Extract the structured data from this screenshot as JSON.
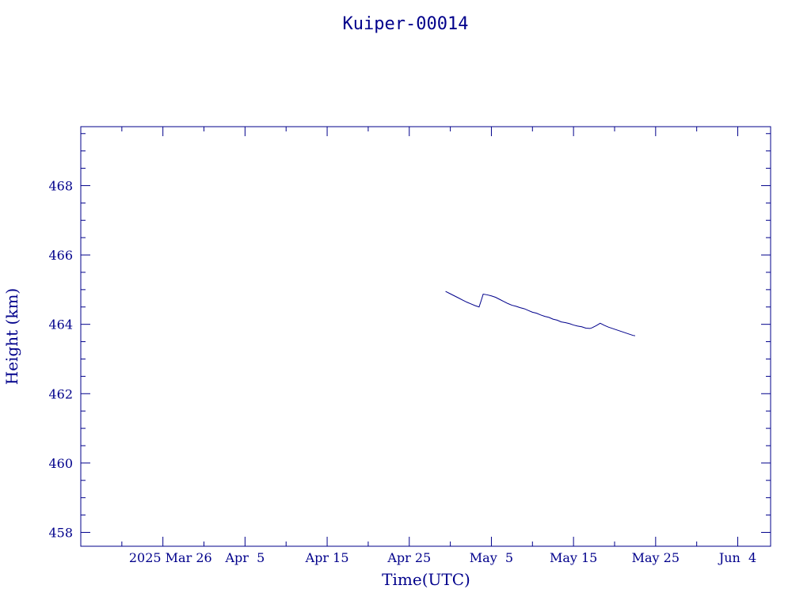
{
  "chart_data": {
    "type": "line",
    "title": "Kuiper-00014",
    "xlabel": "Time(UTC)",
    "ylabel": "Height (km)",
    "color": "#00008b",
    "x_date_range": [
      "2025-03-16",
      "2025-06-08"
    ],
    "ylim": [
      457.6,
      469.7
    ],
    "grid": false,
    "yticks": [
      {
        "value": 458,
        "label": "458"
      },
      {
        "value": 460,
        "label": "460"
      },
      {
        "value": 462,
        "label": "462"
      },
      {
        "value": 464,
        "label": "464"
      },
      {
        "value": 466,
        "label": "466"
      },
      {
        "value": 468,
        "label": "468"
      }
    ],
    "xticks": [
      {
        "date": "2025-03-26",
        "label": "2025 Mar 26"
      },
      {
        "date": "2025-04-05",
        "label": "Apr  5"
      },
      {
        "date": "2025-04-15",
        "label": "Apr 15"
      },
      {
        "date": "2025-04-25",
        "label": "Apr 25"
      },
      {
        "date": "2025-05-05",
        "label": "May  5"
      },
      {
        "date": "2025-05-15",
        "label": "May 15"
      },
      {
        "date": "2025-05-25",
        "label": "May 25"
      },
      {
        "date": "2025-06-04",
        "label": "Jun  4"
      }
    ],
    "series": [
      {
        "x": [
          "2025-04-29T10:00",
          "2025-04-30T00:00",
          "2025-04-30T12:00",
          "2025-05-01T00:00",
          "2025-05-01T12:00",
          "2025-05-02T00:00",
          "2025-05-02T12:00",
          "2025-05-03T00:00",
          "2025-05-03T06:00",
          "2025-05-03T12:00",
          "2025-05-03T18:00",
          "2025-05-04T00:00",
          "2025-05-04T12:00",
          "2025-05-05T00:00",
          "2025-05-05T12:00",
          "2025-05-06T00:00",
          "2025-05-06T12:00",
          "2025-05-07T00:00",
          "2025-05-07T12:00",
          "2025-05-08T00:00",
          "2025-05-08T12:00",
          "2025-05-09T00:00",
          "2025-05-09T12:00",
          "2025-05-10T00:00",
          "2025-05-10T12:00",
          "2025-05-11T00:00",
          "2025-05-11T12:00",
          "2025-05-12T00:00",
          "2025-05-12T12:00",
          "2025-05-13T00:00",
          "2025-05-13T12:00",
          "2025-05-14T00:00",
          "2025-05-14T12:00",
          "2025-05-15T00:00",
          "2025-05-15T12:00",
          "2025-05-16T00:00",
          "2025-05-16T12:00",
          "2025-05-17T00:00",
          "2025-05-17T06:00",
          "2025-05-17T18:00",
          "2025-05-18T06:00",
          "2025-05-18T18:00",
          "2025-05-19T06:00",
          "2025-05-19T18:00",
          "2025-05-20T06:00",
          "2025-05-20T18:00",
          "2025-05-21T06:00",
          "2025-05-21T18:00",
          "2025-05-22T06:00",
          "2025-05-22T12:00"
        ],
        "y": [
          464.95,
          464.88,
          464.82,
          464.76,
          464.7,
          464.64,
          464.59,
          464.54,
          464.52,
          464.5,
          464.68,
          464.87,
          464.85,
          464.82,
          464.78,
          464.72,
          464.66,
          464.6,
          464.55,
          464.52,
          464.48,
          464.45,
          464.4,
          464.35,
          464.32,
          464.27,
          464.23,
          464.2,
          464.15,
          464.12,
          464.07,
          464.05,
          464.02,
          463.98,
          463.95,
          463.93,
          463.89,
          463.88,
          463.9,
          463.96,
          464.03,
          463.97,
          463.92,
          463.88,
          463.84,
          463.8,
          463.76,
          463.72,
          463.68,
          463.67
        ]
      }
    ]
  }
}
